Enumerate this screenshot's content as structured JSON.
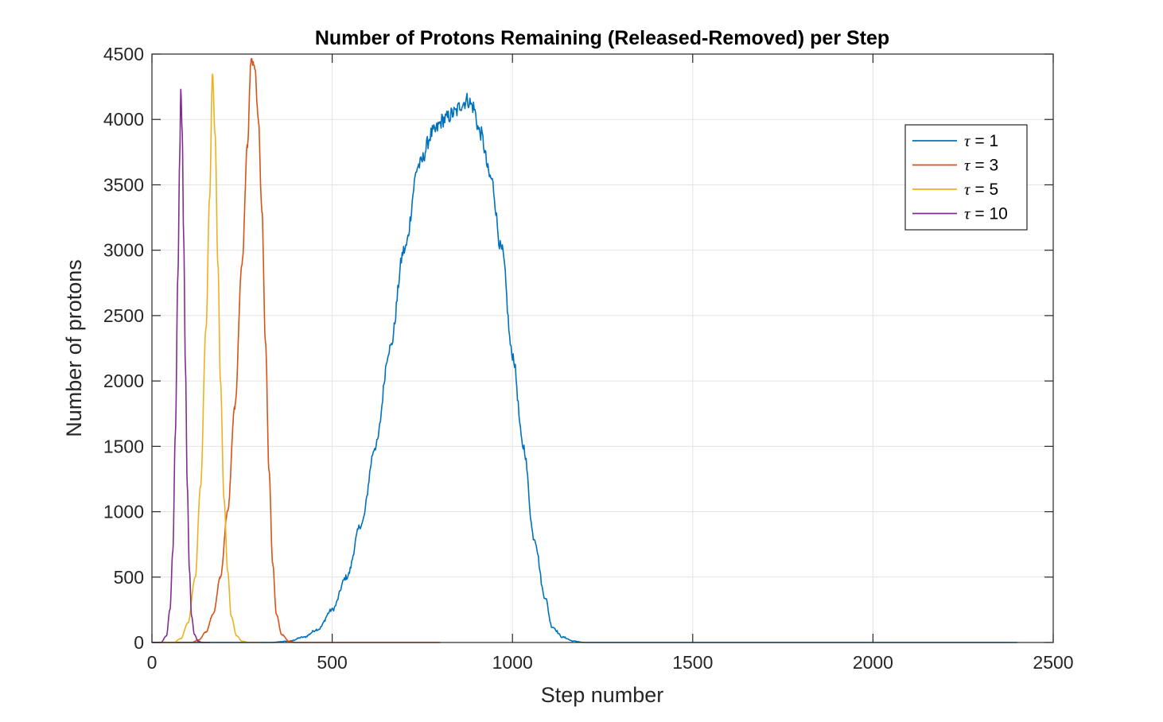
{
  "chart_data": {
    "type": "line",
    "title": "Number of Protons Remaining (Released-Removed) per Step",
    "xlabel": "Step number",
    "ylabel": "Number of protons",
    "xlim": [
      0,
      2500
    ],
    "ylim": [
      0,
      4500
    ],
    "xticks": [
      0,
      500,
      1000,
      1500,
      2000,
      2500
    ],
    "yticks": [
      0,
      500,
      1000,
      1500,
      2000,
      2500,
      3000,
      3500,
      4000,
      4500
    ],
    "xtick_labels": [
      "0",
      "500",
      "1000",
      "1500",
      "2000",
      "2500"
    ],
    "ytick_labels": [
      "0",
      "500",
      "1000",
      "1500",
      "2000",
      "2500",
      "3000",
      "3500",
      "4000",
      "4500"
    ],
    "grid": true,
    "legend_position": "top-right",
    "series": [
      {
        "name": "τ = 1",
        "symbol": "τ",
        "value_label": " = 1",
        "color": "#0072BD",
        "x": [
          0,
          330,
          380,
          420,
          460,
          500,
          540,
          580,
          620,
          660,
          700,
          740,
          780,
          810,
          840,
          860,
          875,
          890,
          910,
          940,
          970,
          1000,
          1030,
          1060,
          1090,
          1110,
          1140,
          1170,
          1200,
          1400,
          1800,
          2400
        ],
        "y": [
          0,
          0,
          10,
          40,
          100,
          250,
          500,
          900,
          1500,
          2250,
          3000,
          3650,
          3900,
          4000,
          4050,
          4120,
          4150,
          4100,
          3900,
          3550,
          3000,
          2200,
          1500,
          800,
          350,
          120,
          40,
          10,
          0,
          0,
          0,
          0
        ],
        "noise": 60
      },
      {
        "name": "τ = 3",
        "symbol": "τ",
        "value_label": " = 3",
        "color": "#D95319",
        "x": [
          0,
          110,
          130,
          150,
          170,
          190,
          210,
          230,
          250,
          265,
          275,
          285,
          295,
          305,
          315,
          325,
          335,
          345,
          360,
          380,
          400,
          500,
          800
        ],
        "y": [
          0,
          0,
          20,
          80,
          220,
          500,
          1000,
          1800,
          2900,
          3800,
          4450,
          4400,
          4000,
          3300,
          2300,
          1300,
          600,
          220,
          60,
          10,
          0,
          0,
          0
        ],
        "noise": 25
      },
      {
        "name": "τ = 5",
        "symbol": "τ",
        "value_label": " = 5",
        "color": "#EDB120",
        "x": [
          0,
          60,
          80,
          100,
          120,
          135,
          150,
          160,
          168,
          175,
          183,
          190,
          200,
          210,
          220,
          235,
          250,
          270,
          300
        ],
        "y": [
          0,
          0,
          30,
          150,
          500,
          1200,
          2400,
          3400,
          4350,
          3900,
          2900,
          2000,
          1100,
          550,
          200,
          50,
          10,
          0,
          0
        ],
        "noise": 15
      },
      {
        "name": "τ = 10",
        "symbol": "τ",
        "value_label": " = 10",
        "color": "#7E2F8E",
        "x": [
          0,
          25,
          40,
          50,
          58,
          65,
          72,
          77,
          80,
          84,
          88,
          93,
          98,
          104,
          110,
          118,
          128,
          140,
          160
        ],
        "y": [
          0,
          0,
          50,
          250,
          700,
          1600,
          2800,
          3700,
          4230,
          3900,
          3100,
          2100,
          1200,
          550,
          200,
          60,
          10,
          0,
          0
        ],
        "noise": 10
      }
    ]
  }
}
